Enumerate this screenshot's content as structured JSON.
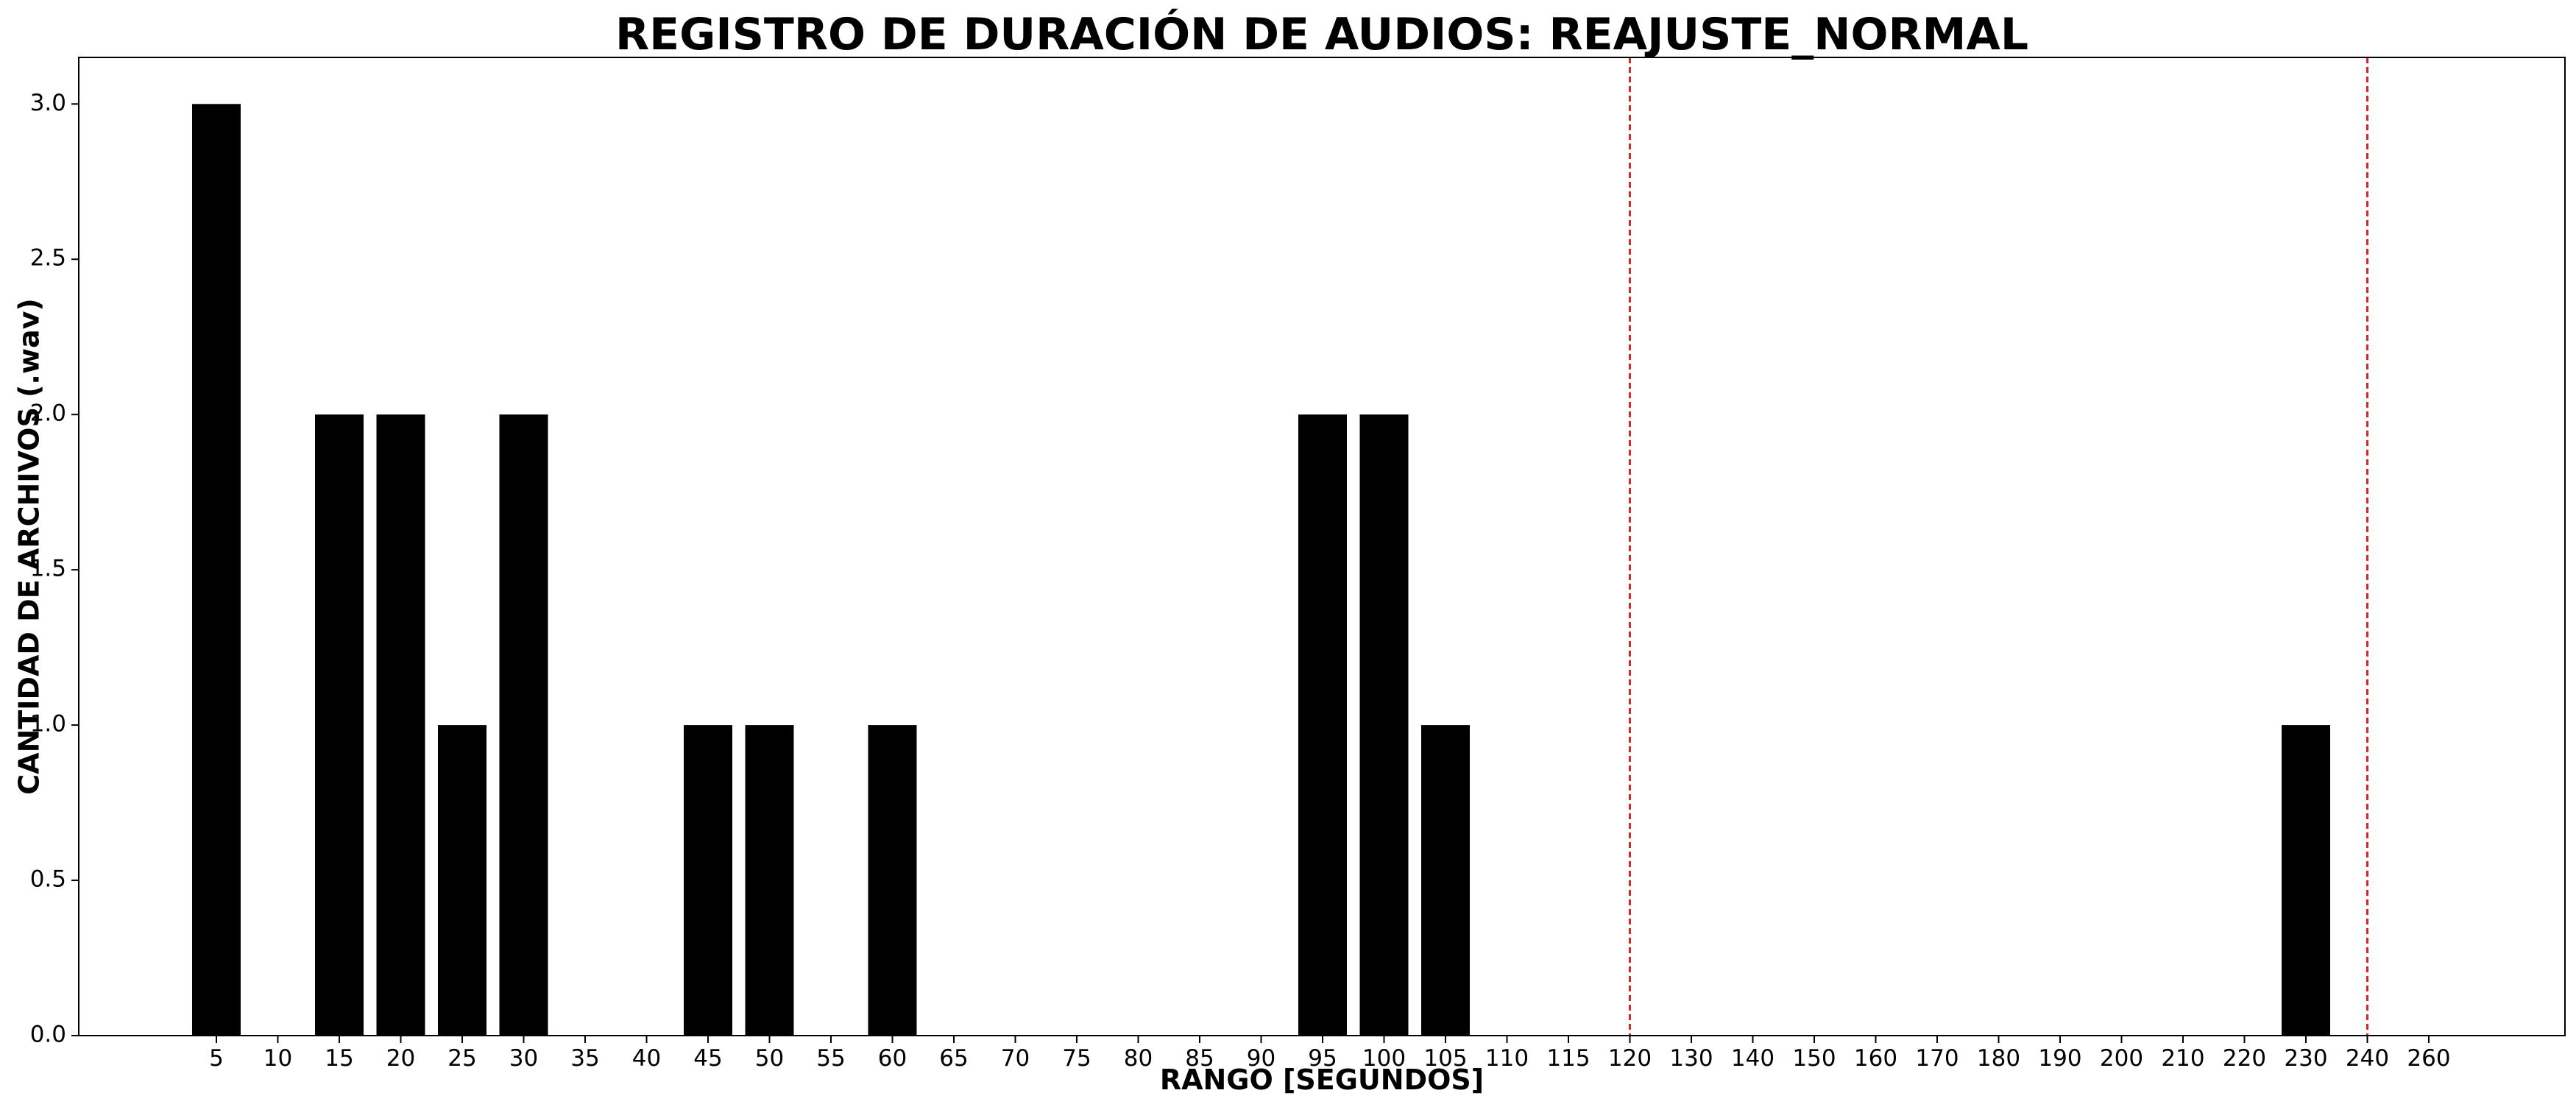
{
  "chart_data": {
    "type": "bar",
    "title": "REGISTRO DE DURACIÓN DE AUDIOS: REAJUSTE_NORMAL",
    "xlabel": "RANGO [SEGUNDOS]",
    "ylabel": "CANTIDAD DE ARCHIVOS (.wav)",
    "categories": [
      "5",
      "10",
      "15",
      "20",
      "25",
      "30",
      "35",
      "40",
      "45",
      "50",
      "55",
      "60",
      "65",
      "70",
      "75",
      "80",
      "85",
      "90",
      "95",
      "100",
      "105",
      "110",
      "115",
      "120",
      "130",
      "140",
      "150",
      "160",
      "170",
      "180",
      "190",
      "200",
      "210",
      "220",
      "230",
      "240",
      "260"
    ],
    "values": [
      3,
      0,
      2,
      2,
      1,
      2,
      0,
      0,
      1,
      1,
      0,
      1,
      0,
      0,
      0,
      0,
      0,
      0,
      2,
      2,
      1,
      0,
      0,
      0,
      0,
      0,
      0,
      0,
      0,
      0,
      0,
      0,
      0,
      0,
      1,
      0,
      0
    ],
    "yticks": [
      0.0,
      0.5,
      1.0,
      1.5,
      2.0,
      2.5,
      3.0
    ],
    "ytick_labels": [
      "0.0",
      "0.5",
      "1.0",
      "1.5",
      "2.0",
      "2.5",
      "3.0"
    ],
    "ylim": [
      0,
      3.15
    ],
    "grid": false,
    "bar_color": "#000000",
    "reference_lines": [
      {
        "category": "120",
        "color": "#d62728",
        "style": "dashed"
      },
      {
        "category": "240",
        "color": "#d62728",
        "style": "dashed"
      }
    ]
  }
}
